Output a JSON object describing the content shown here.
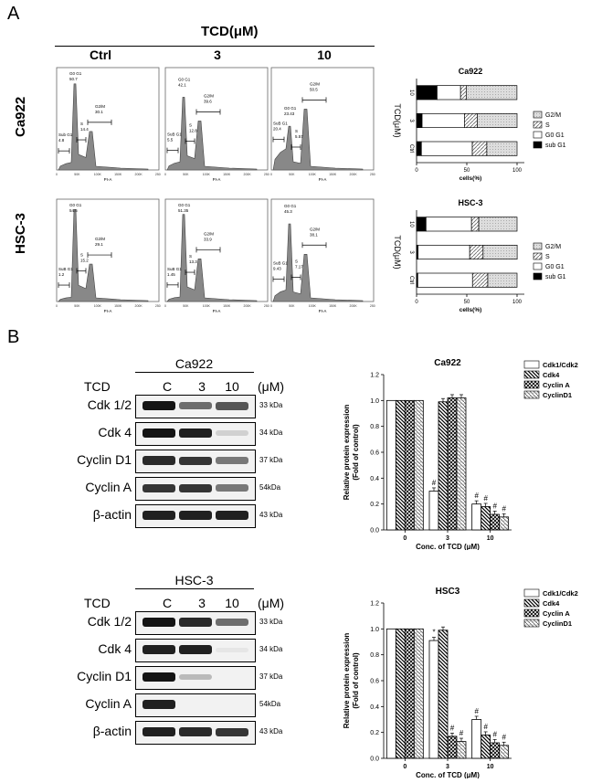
{
  "panel_a": {
    "letter": "A",
    "treatment": "TCD(μM)",
    "conditions": [
      "Ctrl",
      "3",
      "10"
    ],
    "cell_lines": [
      "Ca922",
      "HSC-3"
    ],
    "axis_label": "PI-A",
    "histograms": {
      "ca922": [
        {
          "g0g1": "G0 G1\n50.7",
          "subg1": "Sub G1\n4.8",
          "s": "S\n14.4",
          "g2m": "G2/M\n30.1"
        },
        {
          "g0g1": "G0 G1\n42.1",
          "subg1": "SuB G1\n5.5",
          "s": "S\n12.8",
          "g2m": "G2/M\n39.6"
        },
        {
          "g0g1": "G0 G1\n23.43",
          "subg1": "SuB G1\n20.4",
          "s": "S\n5.57",
          "g2m": "G2/M\n50.5"
        }
      ],
      "hsc3": [
        {
          "g0g1": "G0 G1\n54.5",
          "subg1": "SuB G1\n1.2",
          "s": "S\n15.2",
          "g2m": "G2/M\n29.1"
        },
        {
          "g0g1": "G0 G1\n51.35",
          "subg1": "SuB G1\n1.45",
          "s": "S\n13.3",
          "g2m": "G2/M\n33.9"
        },
        {
          "g0g1": "G0 G1\n45.3",
          "subg1": "SuB G1\n9.43",
          "s": "S\n7.17",
          "g2m": "G2/M\n38.1"
        }
      ]
    },
    "xticks": [
      "0",
      "50K",
      "100K",
      "150K",
      "200K",
      "250K"
    ]
  },
  "panel_b": {
    "letter": "B",
    "treatment_label": "TCD",
    "unit": "(μM)",
    "lanes": [
      "C",
      "3",
      "10"
    ],
    "blots": [
      {
        "cell_line": "Ca922",
        "proteins": [
          "Cdk 1/2",
          "Cdk 4",
          "Cyclin D1",
          "Cyclin A",
          "β-actin"
        ],
        "kda": [
          "33 kDa",
          "34 kDa",
          "37 kDa",
          "54kDa",
          "43 kDa"
        ]
      },
      {
        "cell_line": "HSC-3",
        "proteins": [
          "Cdk 1/2",
          "Cdk 4",
          "Cyclin D1",
          "Cyclin A",
          "β-actin"
        ],
        "kda": [
          "33 kDa",
          "34 kDa",
          "37 kDa",
          "54kDa",
          "43 kDa"
        ]
      }
    ]
  },
  "chart_data": [
    {
      "type": "bar",
      "orientation": "horizontal",
      "stacked": true,
      "title": "Ca922",
      "categories": [
        "Ctrl",
        "3",
        "10"
      ],
      "xlabel": "cells(%)",
      "ylabel": "TCD(μM)",
      "xlim": [
        0,
        100
      ],
      "xticks": [
        "0",
        "50",
        "100"
      ],
      "legend_position": "right",
      "series": [
        {
          "name": "sub G1",
          "values": [
            4.8,
            5.5,
            20.4
          ]
        },
        {
          "name": "G0 G1",
          "values": [
            50.7,
            42.1,
            23.4
          ]
        },
        {
          "name": "S",
          "values": [
            14.4,
            12.8,
            5.6
          ]
        },
        {
          "name": "G2/M",
          "values": [
            30.1,
            39.6,
            50.5
          ]
        }
      ]
    },
    {
      "type": "bar",
      "orientation": "horizontal",
      "stacked": true,
      "title": "HSC-3",
      "categories": [
        "Ctrl",
        "3",
        "10"
      ],
      "xlabel": "cells(%)",
      "ylabel": "TCD(μM)",
      "xlim": [
        0,
        100
      ],
      "xticks": [
        "0",
        "50",
        "100"
      ],
      "legend_position": "right",
      "series": [
        {
          "name": "sub G1",
          "values": [
            1.2,
            1.5,
            9.4
          ]
        },
        {
          "name": "G0 G1",
          "values": [
            54.5,
            51.4,
            45.3
          ]
        },
        {
          "name": "S",
          "values": [
            15.2,
            13.3,
            7.2
          ]
        },
        {
          "name": "G2/M",
          "values": [
            29.1,
            33.9,
            38.1
          ]
        }
      ]
    },
    {
      "type": "bar",
      "title": "Ca922",
      "categories": [
        "0",
        "3",
        "10"
      ],
      "xlabel": "Conc. of TCD (μM)",
      "ylabel": "Relative protein expression\n(Fold of control)",
      "ylim": [
        0,
        1.2
      ],
      "yticks": [
        "0.0",
        "0.2",
        "0.4",
        "0.6",
        "0.8",
        "1.0",
        "1.2"
      ],
      "legend_position": "top-right",
      "series": [
        {
          "name": "Cdk1/Cdk2",
          "values": [
            1.0,
            0.3,
            0.2
          ]
        },
        {
          "name": "Cdk4",
          "values": [
            1.0,
            0.99,
            0.18
          ]
        },
        {
          "name": "Cyclin A",
          "values": [
            1.0,
            1.02,
            0.12
          ]
        },
        {
          "name": "CyclinD1",
          "values": [
            1.0,
            1.02,
            0.1
          ]
        }
      ],
      "annotations": [
        [
          "#",
          "",
          "",
          ""
        ],
        [
          "#",
          "#",
          "#",
          "#"
        ]
      ]
    },
    {
      "type": "bar",
      "title": "HSC3",
      "categories": [
        "0",
        "3",
        "10"
      ],
      "xlabel": "Conc. of TCD (μM)",
      "ylabel": "Relative protein expression\n(Fold of control)",
      "ylim": [
        0,
        1.2
      ],
      "yticks": [
        "0.0",
        "0.2",
        "0.4",
        "0.6",
        "0.8",
        "1.0",
        "1.2"
      ],
      "legend_position": "top-right",
      "series": [
        {
          "name": "Cdk1/Cdk2",
          "values": [
            1.0,
            0.91,
            0.3
          ]
        },
        {
          "name": "Cdk4",
          "values": [
            1.0,
            0.99,
            0.18
          ]
        },
        {
          "name": "Cyclin A",
          "values": [
            1.0,
            0.17,
            0.12
          ]
        },
        {
          "name": "CyclinD1",
          "values": [
            1.0,
            0.13,
            0.1
          ]
        }
      ],
      "annotations": [
        [
          "*",
          "",
          "#",
          "#"
        ],
        [
          "#",
          "#",
          "#",
          "#"
        ]
      ]
    }
  ]
}
